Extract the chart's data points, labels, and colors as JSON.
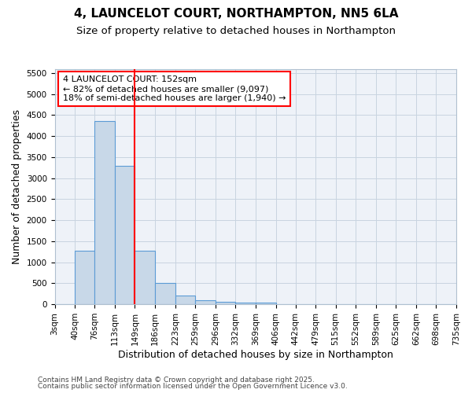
{
  "title1": "4, LAUNCELOT COURT, NORTHAMPTON, NN5 6LA",
  "title2": "Size of property relative to detached houses in Northampton",
  "xlabel": "Distribution of detached houses by size in Northampton",
  "ylabel": "Number of detached properties",
  "bin_edges": [
    3,
    40,
    76,
    113,
    149,
    186,
    223,
    259,
    296,
    332,
    369,
    406,
    442,
    479,
    515,
    552,
    589,
    625,
    662,
    698,
    735
  ],
  "bar_heights": [
    0,
    1270,
    4350,
    3300,
    1280,
    500,
    215,
    90,
    55,
    40,
    30,
    0,
    0,
    0,
    0,
    0,
    0,
    0,
    0,
    0
  ],
  "bar_color": "#c8d8e8",
  "bar_edgecolor": "#5b9bd5",
  "bar_linewidth": 0.8,
  "vline_x": 149,
  "vline_color": "red",
  "vline_linewidth": 1.5,
  "ylim": [
    0,
    5600
  ],
  "yticks": [
    0,
    500,
    1000,
    1500,
    2000,
    2500,
    3000,
    3500,
    4000,
    4500,
    5000,
    5500
  ],
  "annotation_title": "4 LAUNCELOT COURT: 152sqm",
  "annotation_line1": "← 82% of detached houses are smaller (9,097)",
  "annotation_line2": "18% of semi-detached houses are larger (1,940) →",
  "annotation_box_color": "red",
  "footer1": "Contains HM Land Registry data © Crown copyright and database right 2025.",
  "footer2": "Contains public sector information licensed under the Open Government Licence v3.0.",
  "bg_color": "#ffffff",
  "plot_bg_color": "#eef2f8",
  "grid_color": "#c8d4e0",
  "title_fontsize": 11,
  "subtitle_fontsize": 9.5,
  "xlabel_fontsize": 9,
  "ylabel_fontsize": 9,
  "tick_fontsize": 7.5,
  "annotation_fontsize": 8,
  "footer_fontsize": 6.5
}
